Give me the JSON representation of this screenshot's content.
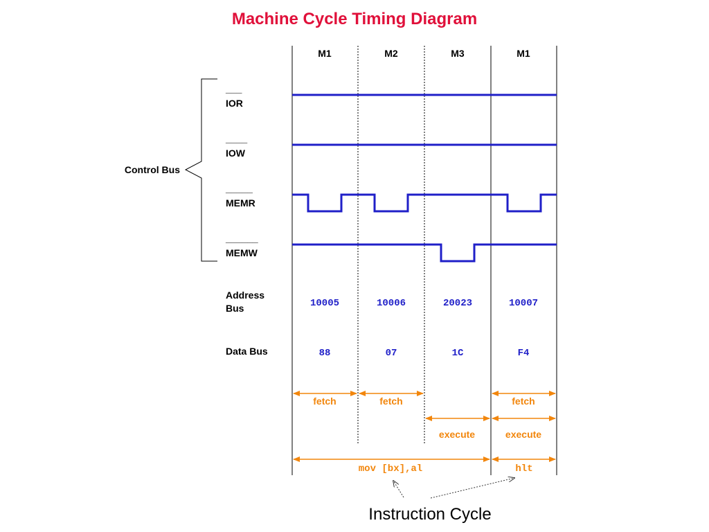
{
  "title": "Machine Cycle Timing Diagram",
  "columns": [
    "M1",
    "M2",
    "M3",
    "M1"
  ],
  "control_bus_label": "Control Bus",
  "signals": {
    "ior": {
      "name": "IOR",
      "bar": "___"
    },
    "iow": {
      "name": "IOW",
      "bar": "____"
    },
    "memr": {
      "name": "MEMR",
      "bar": "_____"
    },
    "memw": {
      "name": "MEMW",
      "bar": "______"
    }
  },
  "address_bus": {
    "label_line1": "Address",
    "label_line2": "Bus",
    "values": [
      "10005",
      "10006",
      "20023",
      "10007"
    ]
  },
  "data_bus": {
    "label": "Data Bus",
    "values": [
      "88",
      "07",
      "1C",
      "F4"
    ]
  },
  "phases": {
    "fetch": "fetch",
    "execute": "execute"
  },
  "instructions": [
    "mov [bx],al",
    "hlt"
  ],
  "instruction_cycle_label": "Instruction Cycle",
  "colors": {
    "title": "#e0103a",
    "signal": "#1f1fc8",
    "arrows": "#f2860c"
  }
}
